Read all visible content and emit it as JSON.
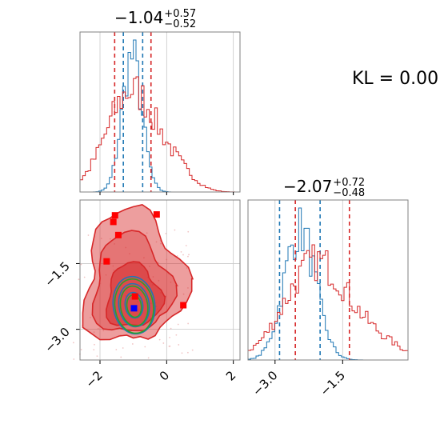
{
  "chart_data": [
    {
      "type": "histogram",
      "panel": "top-left",
      "title": {
        "value": "−1.04",
        "plus": "+0.57",
        "minus": "−0.52"
      },
      "xlim": [
        -2.6,
        2.2
      ],
      "grid": true,
      "x_ticks": [
        -2,
        0,
        2
      ],
      "series": [
        {
          "color": "#1f77b4",
          "center": -1.04,
          "sd": 0.3,
          "quantile_lines": [
            -1.3,
            -0.72
          ]
        },
        {
          "color": "#d62728",
          "center": -1.04,
          "sd": 0.75,
          "quantile_lines": [
            -1.56,
            -0.47
          ]
        }
      ]
    },
    {
      "type": "histogram",
      "panel": "bottom-right",
      "title": {
        "value": "−2.07",
        "plus": "+0.72",
        "minus": "−0.48"
      },
      "xlim": [
        -3.6,
        -0.05
      ],
      "grid": true,
      "x_ticks": [
        -3.0,
        -1.5
      ],
      "x_tick_labels": [
        "−3.0",
        "−1.5"
      ],
      "series": [
        {
          "color": "#1f77b4",
          "center": -2.45,
          "sd": 0.35,
          "quantile_lines": [
            -2.9,
            -2.0
          ]
        },
        {
          "color": "#d62728",
          "center": -2.07,
          "sd": 0.7,
          "quantile_lines": [
            -2.55,
            -1.35
          ]
        }
      ]
    },
    {
      "type": "contour",
      "panel": "bottom-left",
      "xlim": [
        -2.6,
        2.2
      ],
      "ylim": [
        -3.7,
        -0.05
      ],
      "grid": true,
      "x_ticks": [
        -2,
        0,
        2
      ],
      "x_tick_labels": [
        "−2",
        "0",
        "2"
      ],
      "y_ticks": [
        -1.5,
        -3.0
      ],
      "y_tick_labels": [
        "−1.5",
        "−3.0"
      ],
      "series": [
        {
          "color": "#d62728",
          "kind": "filled-contours",
          "levels": 3
        },
        {
          "color": "#1f77b4",
          "kind": "contours",
          "center": [
            -0.98,
            -2.45
          ]
        },
        {
          "color": "#2ca02c",
          "kind": "contours",
          "center": [
            -1.0,
            -2.47
          ]
        }
      ],
      "markers": [
        {
          "color": "#ff0000",
          "x": -1.55,
          "y": -0.4
        },
        {
          "color": "#ff0000",
          "x": -1.6,
          "y": -0.55
        },
        {
          "color": "#ff0000",
          "x": -0.3,
          "y": -0.38
        },
        {
          "color": "#ff0000",
          "x": -1.45,
          "y": -0.85
        },
        {
          "color": "#ff0000",
          "x": -1.8,
          "y": -1.45
        },
        {
          "color": "#ff0000",
          "x": -0.95,
          "y": -2.25
        },
        {
          "color": "#ff0000",
          "x": 0.5,
          "y": -2.45
        },
        {
          "color": "#0000ff",
          "x": -0.98,
          "y": -2.52
        }
      ]
    }
  ],
  "annotation": {
    "label": "KL = 0.00"
  }
}
